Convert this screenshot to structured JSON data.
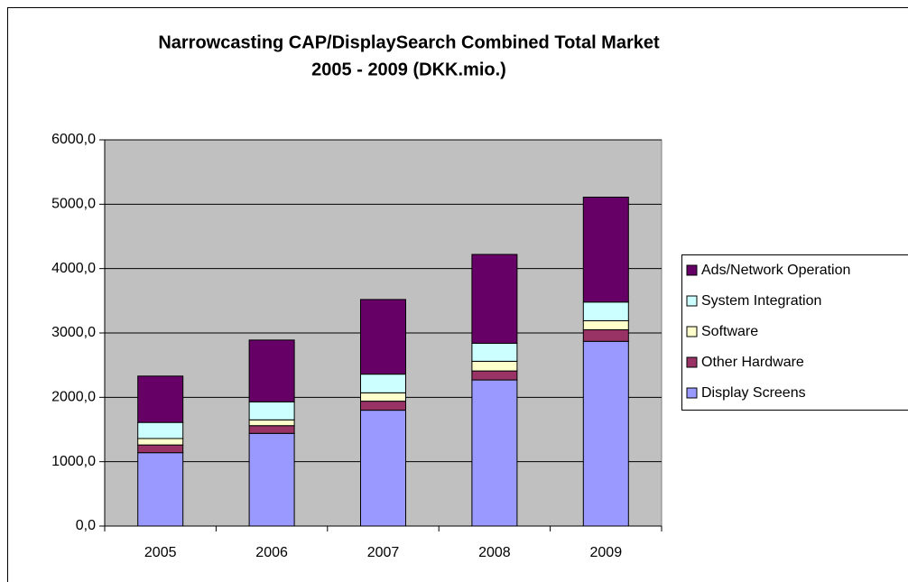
{
  "chart_data": {
    "type": "stacked_bar",
    "title": [
      "Narrowcasting CAP/DisplaySearch Combined Total Market",
      "2005 - 2009 (DKK.mio.)"
    ],
    "categories": [
      "2005",
      "2006",
      "2007",
      "2008",
      "2009"
    ],
    "series": [
      {
        "name": "Display Screens",
        "color": "#9999ff",
        "values": [
          1140,
          1440,
          1800,
          2270,
          2870
        ]
      },
      {
        "name": "Other Hardware",
        "color": "#993366",
        "values": [
          120,
          120,
          140,
          140,
          180
        ]
      },
      {
        "name": "Software",
        "color": "#ffffcc",
        "values": [
          100,
          90,
          130,
          150,
          140
        ]
      },
      {
        "name": "System Integration",
        "color": "#ccffff",
        "values": [
          250,
          280,
          290,
          280,
          290
        ]
      },
      {
        "name": "Ads/Network Operation",
        "color": "#660066",
        "values": [
          720,
          960,
          1160,
          1380,
          1630
        ]
      }
    ],
    "ylim": [
      0,
      6000
    ],
    "yticks": [
      {
        "value": 0,
        "label": "0,0"
      },
      {
        "value": 1000,
        "label": "1000,0"
      },
      {
        "value": 2000,
        "label": "2000,0"
      },
      {
        "value": 3000,
        "label": "3000,0"
      },
      {
        "value": 4000,
        "label": "4000,0"
      },
      {
        "value": 5000,
        "label": "5000,0"
      },
      {
        "value": 6000,
        "label": "6000,0"
      }
    ],
    "grid": true,
    "legend": "right",
    "plot_background": "#c0c0c0"
  }
}
